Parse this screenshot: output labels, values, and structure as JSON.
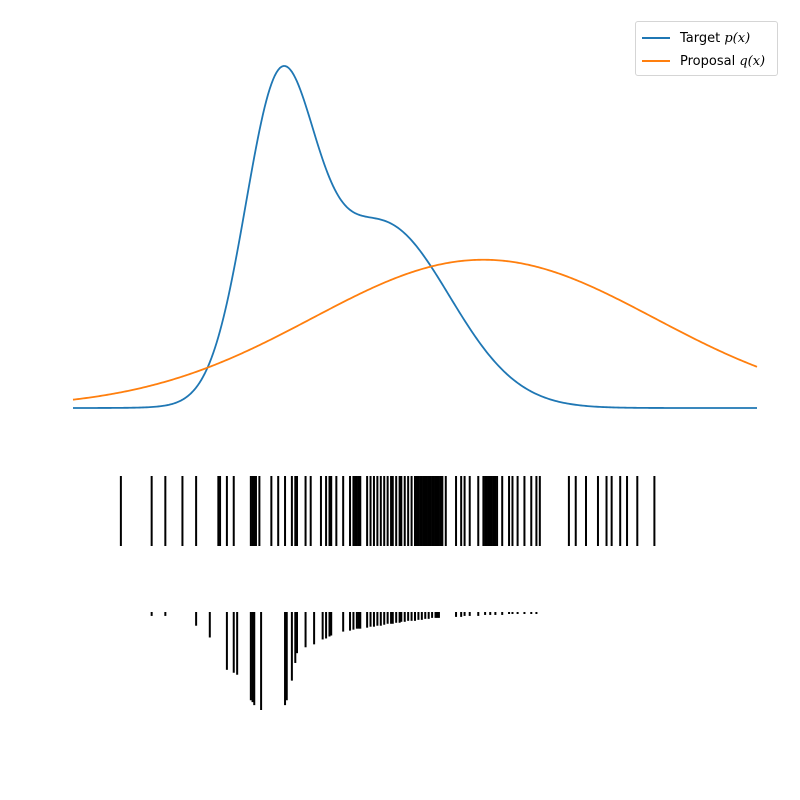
{
  "chart_data": [
    {
      "type": "line",
      "panel": "densities",
      "x_range": [
        -4,
        16
      ],
      "grid": false,
      "axes_visible": false,
      "legend_placement": "top-right",
      "legend": [
        {
          "label_prefix": "Target ",
          "label_math": "p(x)",
          "color": "#1f77b4"
        },
        {
          "label_prefix": "Proposal ",
          "label_math": "q(x)",
          "color": "#ff7f0e"
        }
      ],
      "series": [
        {
          "name": "Target p(x)",
          "color": "#1f77b4",
          "model": "mixture_of_gaussians",
          "components": [
            {
              "weight": 0.3,
              "mean": 2.0,
              "std": 1.0
            },
            {
              "weight": 0.4,
              "mean": 5.0,
              "std": 2.0
            }
          ]
        },
        {
          "name": "Proposal q(x)",
          "color": "#ff7f0e",
          "model": "gaussian_scaled",
          "components": [
            {
              "weight": 0.8,
              "mean": 8.0,
              "std": 5.0
            }
          ]
        }
      ]
    },
    {
      "type": "rug",
      "panel": "samples",
      "values": [
        -2.6,
        -1.7,
        -1.3,
        -0.8,
        -0.4,
        0.25,
        0.3,
        0.5,
        0.7,
        1.2,
        1.25,
        1.3,
        1.35,
        1.45,
        1.8,
        2.0,
        2.2,
        2.4,
        2.5,
        2.55,
        2.8,
        2.95,
        3.25,
        3.4,
        3.5,
        3.55,
        3.7,
        3.9,
        4.1,
        4.2,
        4.25,
        4.3,
        4.35,
        4.4,
        4.6,
        4.7,
        4.8,
        4.9,
        5.0,
        5.1,
        5.2,
        5.3,
        5.35,
        5.45,
        5.55,
        5.6,
        5.7,
        5.8,
        5.9,
        6.0,
        6.05,
        6.1,
        6.15,
        6.2,
        6.25,
        6.3,
        6.35,
        6.4,
        6.45,
        6.5,
        6.55,
        6.6,
        6.65,
        6.7,
        6.75,
        6.8,
        6.9,
        7.2,
        7.35,
        7.45,
        7.6,
        7.85,
        8.0,
        8.05,
        8.1,
        8.15,
        8.2,
        8.25,
        8.3,
        8.35,
        8.4,
        8.55,
        8.75,
        8.85,
        9.0,
        9.2,
        9.4,
        9.55,
        9.65,
        10.5,
        10.7,
        11.0,
        11.35,
        11.6,
        11.75,
        12.0,
        12.2,
        12.5,
        13.0
      ]
    },
    {
      "type": "rug",
      "panel": "importance_weights",
      "description_source": "bar length proportional to weight p(x)/q(x), drawn downward",
      "values": [
        -1.7,
        -1.3,
        -0.4,
        0.0,
        0.5,
        0.7,
        0.8,
        1.2,
        1.25,
        1.3,
        1.5,
        2.2,
        2.25,
        2.4,
        2.5,
        2.55,
        2.8,
        3.05,
        3.3,
        3.4,
        3.5,
        3.55,
        3.9,
        4.1,
        4.2,
        4.3,
        4.35,
        4.4,
        4.6,
        4.7,
        4.8,
        4.9,
        5.0,
        5.1,
        5.2,
        5.3,
        5.35,
        5.45,
        5.55,
        5.6,
        5.7,
        5.8,
        5.9,
        6.0,
        6.1,
        6.2,
        6.3,
        6.4,
        6.5,
        6.6,
        6.65,
        6.7,
        7.2,
        7.35,
        7.45,
        7.6,
        7.85,
        8.05,
        8.2,
        8.35,
        8.55,
        8.75,
        8.85,
        9.0,
        9.2,
        9.4,
        9.55
      ],
      "weights": [
        0.04,
        0.04,
        0.14,
        0.26,
        0.59,
        0.62,
        0.64,
        0.9,
        0.92,
        0.95,
        1.0,
        0.95,
        0.9,
        0.7,
        0.52,
        0.42,
        0.36,
        0.33,
        0.28,
        0.27,
        0.25,
        0.24,
        0.2,
        0.19,
        0.18,
        0.17,
        0.17,
        0.17,
        0.16,
        0.15,
        0.15,
        0.14,
        0.14,
        0.13,
        0.12,
        0.12,
        0.12,
        0.11,
        0.11,
        0.1,
        0.1,
        0.09,
        0.09,
        0.09,
        0.08,
        0.08,
        0.07,
        0.07,
        0.06,
        0.06,
        0.06,
        0.06,
        0.05,
        0.05,
        0.04,
        0.04,
        0.04,
        0.03,
        0.03,
        0.03,
        0.03,
        0.02,
        0.02,
        0.02,
        0.02,
        0.02,
        0.02
      ]
    }
  ]
}
